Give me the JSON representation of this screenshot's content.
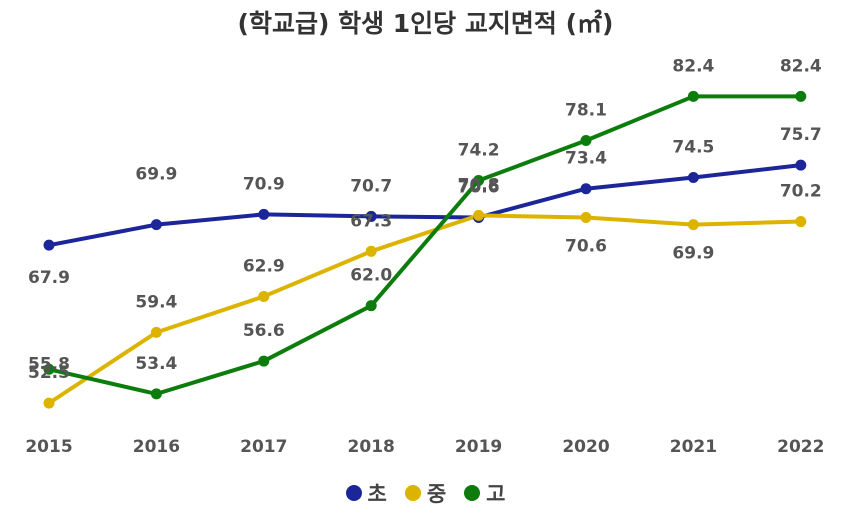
{
  "chart_data": {
    "type": "line",
    "title": "(학교급) 학생 1인당 교지면적 (㎡)",
    "x": [
      "2015",
      "2016",
      "2017",
      "2018",
      "2019",
      "2020",
      "2021",
      "2022"
    ],
    "series": [
      {
        "name": "초",
        "color": "#1c2699",
        "values": [
          67.9,
          69.9,
          70.9,
          70.7,
          70.6,
          73.4,
          74.5,
          75.7
        ]
      },
      {
        "name": "중",
        "color": "#dcb400",
        "values": [
          52.5,
          59.4,
          62.9,
          67.3,
          70.8,
          70.6,
          69.9,
          70.2
        ]
      },
      {
        "name": "고",
        "color": "#0c7d0c",
        "values": [
          55.8,
          53.4,
          56.6,
          62.0,
          74.2,
          78.1,
          82.4,
          82.4
        ]
      }
    ],
    "grid": false,
    "legend_position": "bottom"
  }
}
